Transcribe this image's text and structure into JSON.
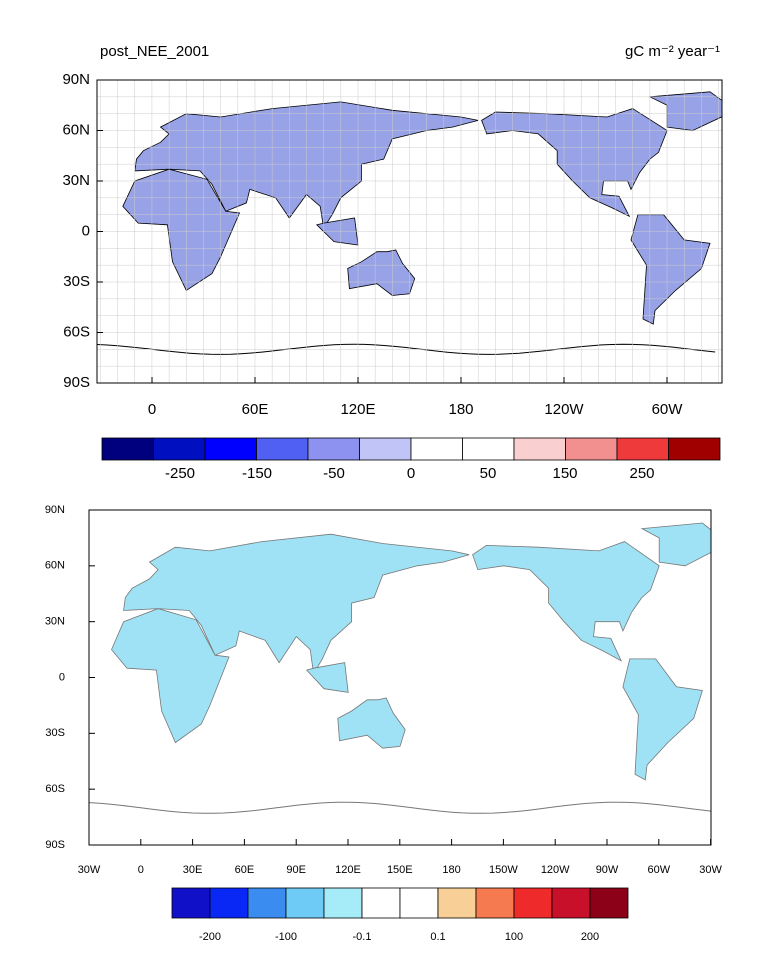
{
  "maps": [
    {
      "title": "post_NEE_2001",
      "units": "gC m⁻² year⁻¹",
      "lat_labels": [
        "90N",
        "60N",
        "30N",
        "0",
        "30S",
        "60S",
        "90S"
      ],
      "lon_labels": [
        "0",
        "60E",
        "120E",
        "180",
        "120W",
        "60W"
      ],
      "land_color": "#98a2e6",
      "colorbar": {
        "colors": [
          "#00007f",
          "#0010c0",
          "#0000ff",
          "#5060f2",
          "#8d92f0",
          "#c0c4f7",
          "#ffffff",
          "#ffffff",
          "#f9cfcf",
          "#f29090",
          "#ee3a3a",
          "#a00000"
        ],
        "labels": [
          "-250",
          "-150",
          "-50",
          "0",
          "50",
          "150",
          "250"
        ]
      }
    },
    {
      "lat_labels": [
        "90N",
        "60N",
        "30N",
        "0",
        "30S",
        "60S",
        "90S"
      ],
      "lon_labels": [
        "30W",
        "0",
        "30E",
        "60E",
        "90E",
        "120E",
        "150E",
        "180",
        "150W",
        "120W",
        "90W",
        "60W",
        "30W"
      ],
      "land_color": "#9fe2f5",
      "colorbar": {
        "colors": [
          "#1010c8",
          "#0a28f5",
          "#3a8cf0",
          "#6ecbf5",
          "#a5ecf8",
          "#ffffff",
          "#ffffff",
          "#f8cf96",
          "#f57a50",
          "#ee2a2a",
          "#c8102a",
          "#8c0018"
        ],
        "labels": [
          "-200",
          "-100",
          "-0.1",
          "0.1",
          "100",
          "200"
        ]
      }
    }
  ]
}
